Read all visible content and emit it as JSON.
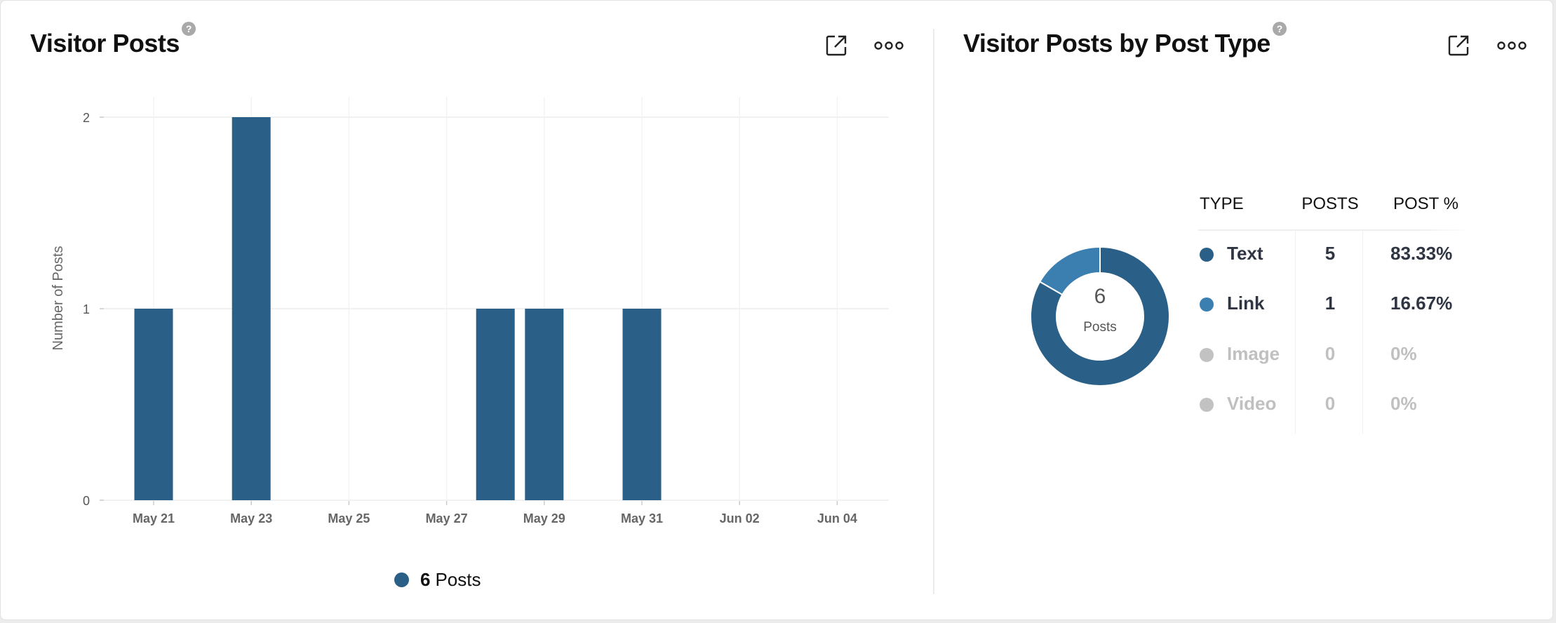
{
  "left_panel": {
    "title": "Visitor Posts",
    "help_label": "?",
    "legend": {
      "count": "6",
      "label": "Posts",
      "color": "#2a6087"
    }
  },
  "right_panel": {
    "title": "Visitor Posts by Post Type",
    "help_label": "?",
    "donut": {
      "total": "6",
      "label": "Posts"
    },
    "table": {
      "headers": [
        "TYPE",
        "POSTS",
        "POST %"
      ],
      "rows": [
        {
          "type": "Text",
          "posts": "5",
          "pct": "83.33%",
          "color": "#2a6087",
          "active": true
        },
        {
          "type": "Link",
          "posts": "1",
          "pct": "16.67%",
          "color": "#3a7fb0",
          "active": true
        },
        {
          "type": "Image",
          "posts": "0",
          "pct": "0%",
          "color": "#c2c2c2",
          "active": false
        },
        {
          "type": "Video",
          "posts": "0",
          "pct": "0%",
          "color": "#c2c2c2",
          "active": false
        }
      ]
    }
  },
  "chart_data": [
    {
      "type": "bar",
      "title": "Visitor Posts",
      "xlabel": "",
      "ylabel": "Number of Posts",
      "ylim": [
        0,
        2
      ],
      "yticks": [
        "0",
        "1",
        "2"
      ],
      "xticks": [
        "May 21",
        "May 23",
        "May 25",
        "May 27",
        "May 29",
        "May 31",
        "Jun 02",
        "Jun 04"
      ],
      "categories": [
        "May 21",
        "May 23",
        "May 28",
        "May 29",
        "May 31"
      ],
      "day_index": [
        0,
        2,
        7,
        8,
        10
      ],
      "values": [
        1,
        2,
        1,
        1,
        1
      ],
      "color": "#2a6087",
      "legend": "6 Posts"
    },
    {
      "type": "pie",
      "title": "Visitor Posts by Post Type",
      "categories": [
        "Text",
        "Link",
        "Image",
        "Video"
      ],
      "values": [
        5,
        1,
        0,
        0
      ],
      "colors": [
        "#2a6087",
        "#3a7fb0",
        "#c2c2c2",
        "#c2c2c2"
      ]
    }
  ]
}
